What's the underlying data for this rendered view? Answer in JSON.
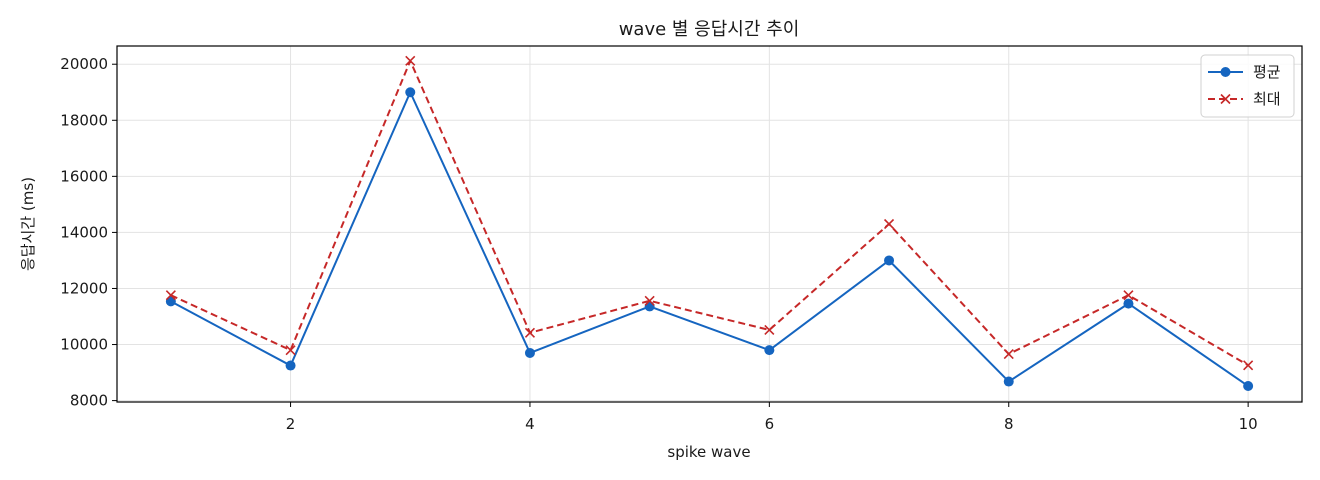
{
  "chart_data": {
    "type": "line",
    "title": "wave 별 응답시간 추이",
    "xlabel": "spike wave",
    "ylabel": "응답시간 (ms)",
    "xlim": [
      0.55,
      10.45
    ],
    "ylim": [
      7950,
      20650
    ],
    "xticks": [
      2,
      4,
      6,
      8,
      10
    ],
    "yticks": [
      8000,
      10000,
      12000,
      14000,
      16000,
      18000,
      20000
    ],
    "grid": true,
    "legend_position": "top-right",
    "x": [
      1,
      2,
      3,
      4,
      5,
      6,
      7,
      8,
      9,
      10
    ],
    "series": [
      {
        "name": "평균",
        "color": "#1565c0",
        "marker": "circle",
        "line_style": "solid",
        "values": [
          11540,
          9250,
          19000,
          9700,
          11360,
          9800,
          13000,
          8680,
          11460,
          8520
        ]
      },
      {
        "name": "최대",
        "color": "#c62828",
        "marker": "x",
        "line_style": "dashed",
        "values": [
          11760,
          9800,
          20120,
          10420,
          11560,
          10520,
          14300,
          9660,
          11760,
          9260
        ]
      }
    ]
  }
}
